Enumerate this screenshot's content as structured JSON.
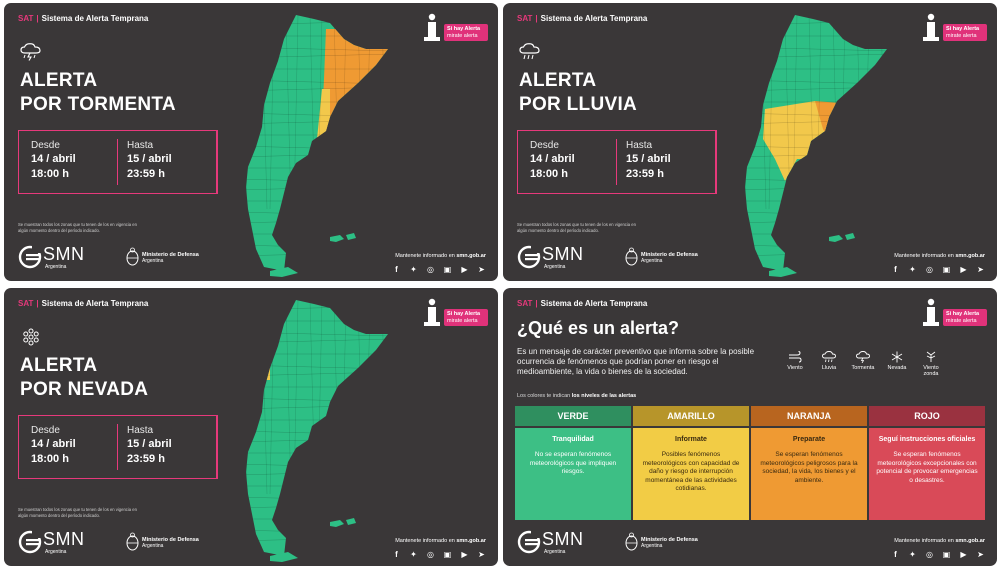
{
  "header": {
    "sat_code": "SAT",
    "system_name": "Sistema de Alerta Temprana"
  },
  "badge": {
    "line1": "Si hay Alerta",
    "line2": "mirate alerta"
  },
  "panels": [
    {
      "title_line1": "ALERTA",
      "title_line2": "POR TORMENTA",
      "hazard_icon": "storm-cloud-icon",
      "from_label": "Desde",
      "from_date": "14 / abril",
      "from_time": "18:00 h",
      "to_label": "Hasta",
      "to_date": "15 / abril",
      "to_time": "23:59 h"
    },
    {
      "title_line1": "ALERTA",
      "title_line2": "POR LLUVIA",
      "hazard_icon": "rain-cloud-icon",
      "from_label": "Desde",
      "from_date": "14 / abril",
      "from_time": "18:00 h",
      "to_label": "Hasta",
      "to_date": "15 / abril",
      "to_time": "23:59 h"
    },
    {
      "title_line1": "ALERTA",
      "title_line2": "POR NEVADA",
      "hazard_icon": "snowflake-icon",
      "from_label": "Desde",
      "from_date": "14 / abril",
      "from_time": "18:00 h",
      "to_label": "Hasta",
      "to_date": "15 / abril",
      "to_time": "23:59 h"
    }
  ],
  "footnote": "Se muestran todos los zonas que tu tenen de los en vigencia en algún momento dentro del período indicado.",
  "logos": {
    "smn": "SMN",
    "smn_sub": "Argentina",
    "ministry_line1": "Ministerio de Defensa",
    "ministry_line2": "Argentina"
  },
  "footer": {
    "inform_prefix": "Mantenete informado en",
    "inform_url": "smn.gob.ar"
  },
  "social_icons": [
    "facebook-icon",
    "twitter-icon",
    "instagram-icon",
    "app-icon",
    "youtube-icon",
    "telegram-icon"
  ],
  "info_panel": {
    "title": "¿Qué es un alerta?",
    "description": "Es un mensaje de carácter preventivo que informa sobre la posible ocurrencia de fenómenos que podrían poner en riesgo el medioambiente, la vida o bienes de la sociedad.",
    "phenomena": [
      {
        "label": "Viento",
        "icon": "wind-icon"
      },
      {
        "label": "Lluvia",
        "icon": "rain-icon"
      },
      {
        "label": "Tormenta",
        "icon": "storm-icon"
      },
      {
        "label": "Nevada",
        "icon": "snow-icon"
      },
      {
        "label": "Viento zonda",
        "icon": "zonda-wind-icon"
      }
    ],
    "levels_intro_prefix": "Los colores te indican",
    "levels_intro_bold": "los niveles de las alertas",
    "levels": [
      {
        "name": "VERDE",
        "head_color": "#2f8f5f",
        "body_color": "#3dbf85",
        "title": "Tranquilidad",
        "text": "No se esperan fenómenos meteorológicos que impliquen riesgos."
      },
      {
        "name": "AMARILLO",
        "head_color": "#b7952a",
        "body_color": "#f2cc45",
        "title": "Informate",
        "text": "Posibles fenómenos meteorológicos con capacidad de daño y riesgo de interrupción momentánea de las actividades cotidianas."
      },
      {
        "name": "NARANJA",
        "head_color": "#b8651f",
        "body_color": "#ef9a33",
        "title": "Preparate",
        "text": "Se esperan fenómenos meteorológicos peligrosos para la sociedad, la vida, los bienes y el ambiente."
      },
      {
        "name": "ROJO",
        "head_color": "#9a3240",
        "body_color": "#d94a58",
        "title": "Seguí instrucciones oficiales",
        "text": "Se esperan fenómenos meteorológicos excepcionales con potencial de provocar emergencias o desastres."
      }
    ]
  },
  "colors": {
    "bg": "#3a3738",
    "accent": "#e6397b",
    "green": "#2dbf85",
    "yellow": "#f2c84b",
    "orange": "#ef9a33"
  }
}
